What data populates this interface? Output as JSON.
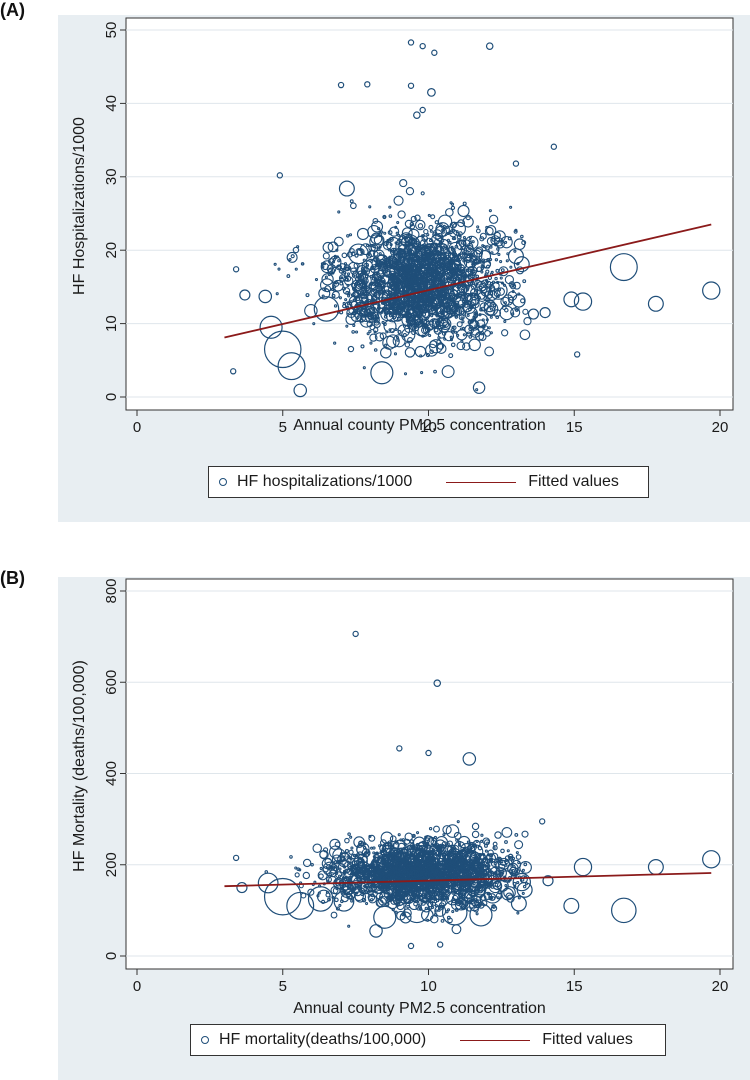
{
  "panels": [
    {
      "label": "(A)",
      "chart_data": {
        "type": "scatter",
        "xlabel": "Annual county PM2.5 concentration",
        "ylabel": "HF Hospitalizations/1000",
        "xlim": [
          0,
          20
        ],
        "ylim": [
          0,
          50
        ],
        "xticks": [
          "0",
          "5",
          "10",
          "15",
          "20"
        ],
        "yticks": [
          "0",
          "10",
          "20",
          "30",
          "40",
          "50"
        ],
        "grid": true,
        "cluster": {
          "x_center": 9.8,
          "x_sd": 1.5,
          "y_center": 15.5,
          "y_sd": 4.2
        },
        "series": [
          {
            "name": "HF hospitalizations/1000",
            "marker": "hollow-circle",
            "points": [
              {
                "x": 9.4,
                "y": 48.3,
                "s": 1
              },
              {
                "x": 9.8,
                "y": 47.8,
                "s": 1
              },
              {
                "x": 12.1,
                "y": 47.8,
                "s": 1.5
              },
              {
                "x": 10.2,
                "y": 46.9,
                "s": 1
              },
              {
                "x": 7.0,
                "y": 42.5,
                "s": 1
              },
              {
                "x": 7.9,
                "y": 42.6,
                "s": 1
              },
              {
                "x": 9.4,
                "y": 42.4,
                "s": 1
              },
              {
                "x": 10.1,
                "y": 41.5,
                "s": 2
              },
              {
                "x": 9.8,
                "y": 39.1,
                "s": 1
              },
              {
                "x": 9.6,
                "y": 38.4,
                "s": 1.5
              },
              {
                "x": 14.3,
                "y": 34.1,
                "s": 1
              },
              {
                "x": 13.0,
                "y": 31.8,
                "s": 1
              },
              {
                "x": 4.9,
                "y": 30.2,
                "s": 1
              },
              {
                "x": 7.2,
                "y": 28.4,
                "s": 5
              },
              {
                "x": 3.4,
                "y": 17.4,
                "s": 1
              },
              {
                "x": 3.7,
                "y": 13.9,
                "s": 3
              },
              {
                "x": 4.4,
                "y": 13.7,
                "s": 4
              },
              {
                "x": 3.3,
                "y": 3.5,
                "s": 1
              },
              {
                "x": 5.6,
                "y": 0.9,
                "s": 4
              },
              {
                "x": 13.2,
                "y": 18.1,
                "s": 5
              },
              {
                "x": 13.0,
                "y": 19.2,
                "s": 5
              },
              {
                "x": 13.1,
                "y": 13.1,
                "s": 4
              },
              {
                "x": 13.6,
                "y": 11.3,
                "s": 3
              },
              {
                "x": 14.0,
                "y": 11.5,
                "s": 3
              },
              {
                "x": 14.9,
                "y": 13.3,
                "s": 5
              },
              {
                "x": 15.3,
                "y": 13.0,
                "s": 6
              },
              {
                "x": 16.7,
                "y": 17.7,
                "s": 10
              },
              {
                "x": 17.8,
                "y": 12.7,
                "s": 5
              },
              {
                "x": 19.7,
                "y": 14.5,
                "s": 6
              },
              {
                "x": 15.1,
                "y": 5.8,
                "s": 1
              },
              {
                "x": 5.0,
                "y": 6.5,
                "s": 14
              },
              {
                "x": 5.3,
                "y": 4.2,
                "s": 10
              },
              {
                "x": 4.6,
                "y": 9.5,
                "s": 8
              },
              {
                "x": 6.5,
                "y": 12.0,
                "s": 9
              },
              {
                "x": 8.4,
                "y": 3.3,
                "s": 8
              },
              {
                "x": 7.6,
                "y": 19.5,
                "s": 7
              },
              {
                "x": 9.3,
                "y": 20.5,
                "s": 9
              },
              {
                "x": 11.2,
                "y": 18.0,
                "s": 8
              },
              {
                "x": 12.4,
                "y": 14.5,
                "s": 6
              },
              {
                "x": 10.6,
                "y": 12.0,
                "s": 7
              }
            ]
          },
          {
            "name": "Fitted values",
            "type": "line",
            "x": [
              3.0,
              19.7
            ],
            "y": [
              8.1,
              23.5
            ],
            "color": "#8b1a1a"
          }
        ]
      },
      "legend": {
        "scatter_label": "HF hospitalizations/1000",
        "line_label": "Fitted values"
      }
    },
    {
      "label": "(B)",
      "chart_data": {
        "type": "scatter",
        "xlabel": "Annual county PM2.5 concentration",
        "ylabel": "HF Mortality (deaths/100,000)",
        "xlim": [
          0,
          20
        ],
        "ylim": [
          0,
          800
        ],
        "xticks": [
          "0",
          "5",
          "10",
          "15",
          "20"
        ],
        "yticks": [
          "0",
          "200",
          "400",
          "600",
          "800"
        ],
        "grid": true,
        "cluster": {
          "x_center": 9.8,
          "x_sd": 1.6,
          "y_center": 180,
          "y_sd": 38
        },
        "series": [
          {
            "name": "HF mortality(deaths/100,000)",
            "marker": "hollow-circle",
            "points": [
              {
                "x": 7.5,
                "y": 706,
                "s": 1
              },
              {
                "x": 10.3,
                "y": 598,
                "s": 1.5
              },
              {
                "x": 11.4,
                "y": 432,
                "s": 4
              },
              {
                "x": 9.0,
                "y": 455,
                "s": 1
              },
              {
                "x": 10.0,
                "y": 445,
                "s": 1
              },
              {
                "x": 13.9,
                "y": 295,
                "s": 1
              },
              {
                "x": 14.1,
                "y": 165,
                "s": 3
              },
              {
                "x": 13.2,
                "y": 162,
                "s": 6
              },
              {
                "x": 13.3,
                "y": 145,
                "s": 5
              },
              {
                "x": 13.1,
                "y": 115,
                "s": 5
              },
              {
                "x": 14.9,
                "y": 110,
                "s": 5
              },
              {
                "x": 15.3,
                "y": 195,
                "s": 6
              },
              {
                "x": 16.7,
                "y": 100,
                "s": 9
              },
              {
                "x": 17.8,
                "y": 195,
                "s": 5
              },
              {
                "x": 19.7,
                "y": 212,
                "s": 6
              },
              {
                "x": 9.4,
                "y": 22,
                "s": 1
              },
              {
                "x": 10.4,
                "y": 25,
                "s": 1
              },
              {
                "x": 8.2,
                "y": 55,
                "s": 4
              },
              {
                "x": 5.0,
                "y": 130,
                "s": 14
              },
              {
                "x": 5.6,
                "y": 110,
                "s": 10
              },
              {
                "x": 6.3,
                "y": 125,
                "s": 9
              },
              {
                "x": 4.5,
                "y": 160,
                "s": 7
              },
              {
                "x": 8.5,
                "y": 85,
                "s": 8
              },
              {
                "x": 9.6,
                "y": 100,
                "s": 9
              },
              {
                "x": 10.9,
                "y": 95,
                "s": 9
              },
              {
                "x": 11.8,
                "y": 90,
                "s": 8
              },
              {
                "x": 7.1,
                "y": 120,
                "s": 7
              },
              {
                "x": 12.2,
                "y": 135,
                "s": 6
              },
              {
                "x": 3.6,
                "y": 150,
                "s": 3
              },
              {
                "x": 3.4,
                "y": 215,
                "s": 1
              }
            ]
          },
          {
            "name": "Fitted values",
            "type": "line",
            "x": [
              3.0,
              19.7
            ],
            "y": [
              153,
              182
            ],
            "color": "#8b1a1a"
          }
        ]
      },
      "legend": {
        "scatter_label": "HF mortality(deaths/100,000)",
        "line_label": "Fitted values"
      }
    }
  ],
  "colors": {
    "marker": "#1f4e79",
    "fit_line": "#8b1a1a",
    "panel_bg": "#e8eef2",
    "plot_bg": "#ffffff",
    "grid": "#dfe6eb"
  }
}
